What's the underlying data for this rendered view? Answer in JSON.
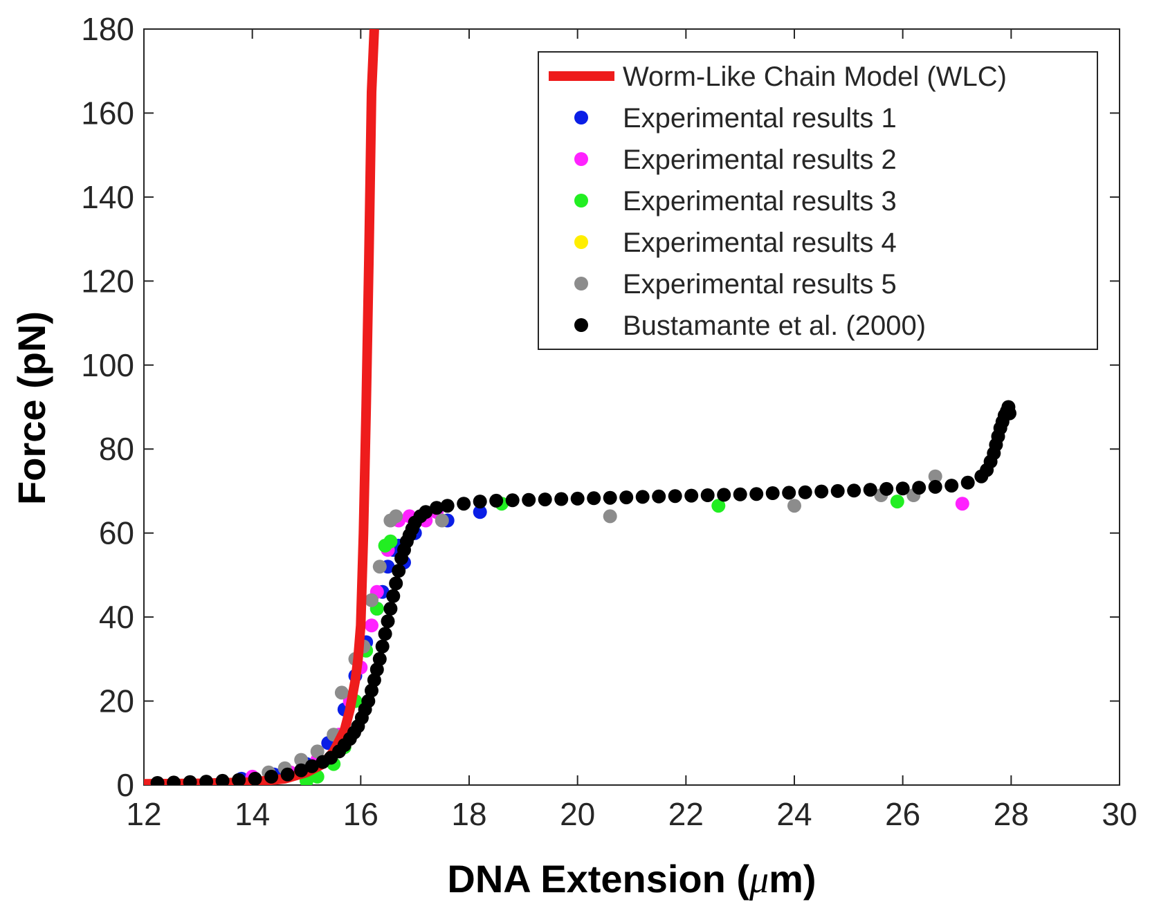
{
  "chart_data": {
    "type": "scatter",
    "xlabel_prefix": "DNA Extension (",
    "xlabel_unit": "μ",
    "xlabel_suffix": "m)",
    "ylabel": "Force (pN)",
    "xlim": [
      12,
      30
    ],
    "ylim": [
      0,
      180
    ],
    "xticks": [
      12,
      14,
      16,
      18,
      20,
      22,
      24,
      26,
      28,
      30
    ],
    "yticks": [
      0,
      20,
      40,
      60,
      80,
      100,
      120,
      140,
      160,
      180
    ],
    "legend_position": "top-right",
    "series": [
      {
        "name": "Worm-Like Chain Model (WLC)",
        "kind": "line",
        "color": "#ee1c1c",
        "x": [
          12.0,
          13.0,
          14.0,
          14.6,
          15.0,
          15.3,
          15.5,
          15.7,
          15.8,
          15.9,
          15.95,
          16.0,
          16.05,
          16.1,
          16.15,
          16.2,
          16.25
        ],
        "y": [
          0.3,
          0.4,
          0.7,
          1.5,
          3,
          5,
          8,
          13,
          18,
          25,
          30,
          38,
          60,
          90,
          125,
          165,
          180
        ]
      },
      {
        "name": "Experimental results 1",
        "kind": "scatter",
        "color": "#0a1ee6",
        "x": [
          13.8,
          14.4,
          15.0,
          15.4,
          15.7,
          15.9,
          16.1,
          16.3,
          16.4,
          16.5,
          16.6,
          16.7,
          16.8,
          17.0,
          17.6,
          18.2
        ],
        "y": [
          1.5,
          2.5,
          5,
          10,
          18,
          26,
          34,
          42,
          46,
          52,
          56,
          57,
          53,
          60,
          63,
          65
        ]
      },
      {
        "name": "Experimental results 2",
        "kind": "scatter",
        "color": "#ff22ff",
        "x": [
          14.0,
          14.7,
          15.2,
          15.6,
          15.8,
          16.0,
          16.2,
          16.3,
          16.5,
          16.7,
          16.9,
          17.2,
          17.4,
          27.1
        ],
        "y": [
          2,
          3,
          6,
          12,
          20,
          28,
          38,
          46,
          56,
          63,
          64,
          63,
          65,
          67
        ]
      },
      {
        "name": "Experimental results 3",
        "kind": "scatter",
        "color": "#22ee22",
        "x": [
          15.0,
          15.2,
          15.5,
          15.7,
          15.9,
          16.1,
          16.3,
          16.45,
          16.55,
          18.6,
          22.6,
          25.9
        ],
        "y": [
          1,
          2,
          5,
          9,
          20,
          32,
          42,
          57,
          58,
          67,
          66.5,
          67.5
        ]
      },
      {
        "name": "Experimental results 4",
        "kind": "scatter",
        "color": "#ffee00",
        "x": [],
        "y": []
      },
      {
        "name": "Experimental results 5",
        "kind": "scatter",
        "color": "#8c8c8c",
        "x": [
          14.3,
          14.6,
          14.9,
          15.2,
          15.5,
          15.65,
          15.9,
          16.05,
          16.2,
          16.35,
          16.55,
          16.65,
          17.5,
          20.6,
          24.0,
          25.6,
          26.2,
          26.6
        ],
        "y": [
          3,
          4,
          6,
          8,
          12,
          22,
          30,
          33,
          44,
          52,
          63,
          64,
          63,
          64,
          66.5,
          69,
          69,
          73.5
        ]
      },
      {
        "name": "Bustamante et al. (2000)",
        "kind": "scatter",
        "color": "#000000",
        "x": [
          12.25,
          12.55,
          12.85,
          13.15,
          13.45,
          13.75,
          14.05,
          14.35,
          14.65,
          14.9,
          15.1,
          15.3,
          15.45,
          15.6,
          15.7,
          15.8,
          15.88,
          15.95,
          16.02,
          16.08,
          16.14,
          16.2,
          16.25,
          16.3,
          16.35,
          16.4,
          16.45,
          16.5,
          16.55,
          16.6,
          16.65,
          16.7,
          16.75,
          16.8,
          16.85,
          16.9,
          16.95,
          17.0,
          17.1,
          17.2,
          17.4,
          17.6,
          17.9,
          18.2,
          18.5,
          18.8,
          19.1,
          19.4,
          19.7,
          20.0,
          20.3,
          20.6,
          20.9,
          21.2,
          21.5,
          21.8,
          22.1,
          22.4,
          22.7,
          23.0,
          23.3,
          23.6,
          23.9,
          24.2,
          24.5,
          24.8,
          25.1,
          25.4,
          25.7,
          26.0,
          26.3,
          26.6,
          26.9,
          27.2,
          27.45,
          27.55,
          27.62,
          27.68,
          27.72,
          27.76,
          27.8,
          27.84,
          27.88,
          27.92,
          27.95,
          27.97
        ],
        "y": [
          0.5,
          0.6,
          0.7,
          0.8,
          1.0,
          1.2,
          1.5,
          2.0,
          2.5,
          3.5,
          4.5,
          5.5,
          6.5,
          8.0,
          9.5,
          11,
          12.5,
          14,
          16,
          18,
          20,
          22.5,
          25,
          27.5,
          30,
          33,
          36,
          39,
          42,
          45,
          48,
          51,
          54,
          56,
          58,
          59.5,
          61,
          62.5,
          64,
          65,
          66,
          66.5,
          67,
          67.5,
          67.7,
          67.8,
          67.9,
          68,
          68.1,
          68.2,
          68.3,
          68.4,
          68.5,
          68.6,
          68.7,
          68.8,
          68.9,
          69,
          69.1,
          69.2,
          69.3,
          69.5,
          69.6,
          69.7,
          69.9,
          70,
          70.1,
          70.3,
          70.5,
          70.6,
          70.8,
          71,
          71.3,
          72,
          73.5,
          75,
          77,
          79,
          81,
          83,
          85,
          86.5,
          88,
          89,
          90,
          88.5
        ]
      }
    ]
  }
}
